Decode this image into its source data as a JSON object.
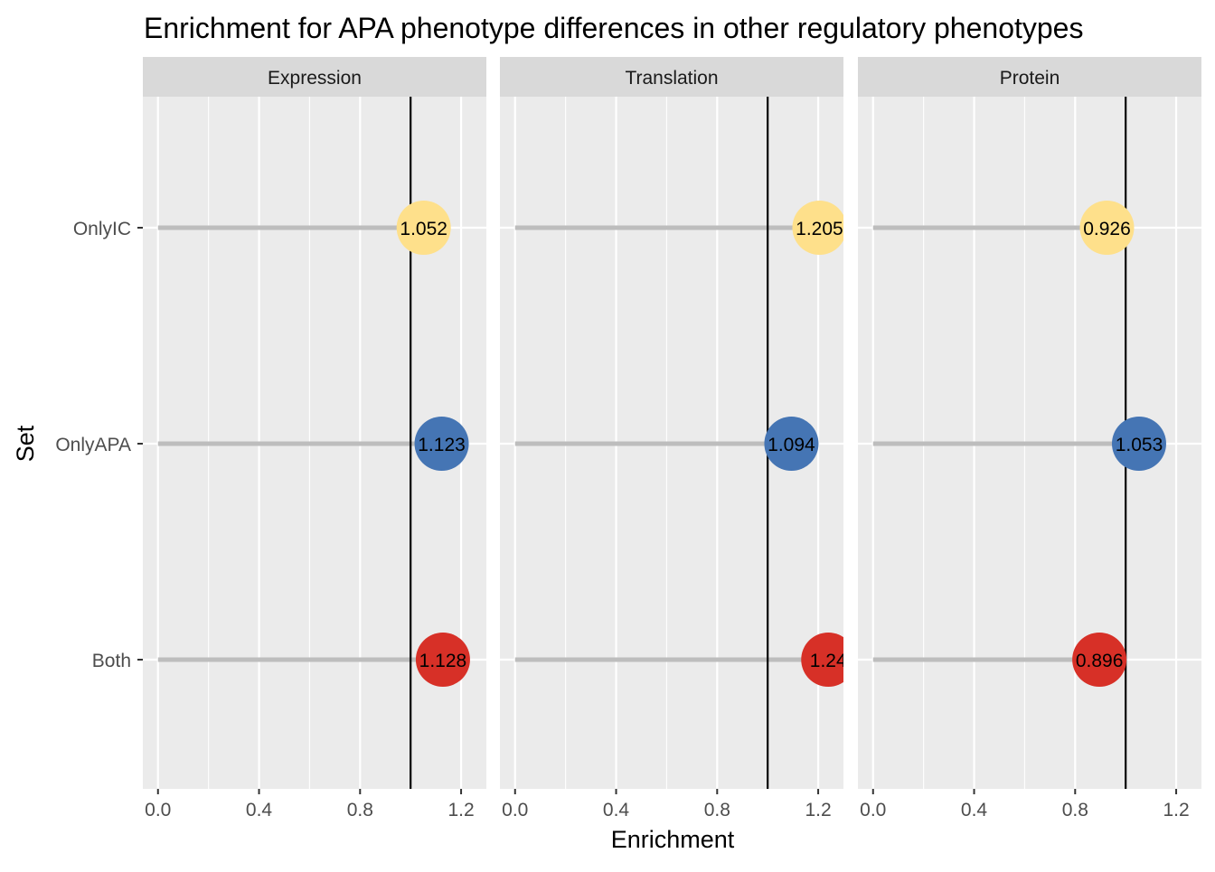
{
  "chart_data": {
    "type": "scatter",
    "subtype": "lollipop-facets",
    "title": "Enrichment for APA phenotype differences in other regulatory phenotypes",
    "xlabel": "Enrichment",
    "ylabel": "Set",
    "xlim": [
      -0.06,
      1.3
    ],
    "x_ticks": [
      0.0,
      0.4,
      0.8,
      1.2
    ],
    "x_tick_labels": [
      "0.0",
      "0.4",
      "0.8",
      "1.2"
    ],
    "reference_line": 1.0,
    "categories": [
      "OnlyIC",
      "OnlyAPA",
      "Both"
    ],
    "colors": {
      "OnlyIC": "#fee08b",
      "OnlyAPA": "#4575b4",
      "Both": "#d73027",
      "segment": "#bdbdbd",
      "panel_bg": "#ebebeb",
      "strip_bg": "#d9d9d9",
      "grid": "#ffffff"
    },
    "grid": true,
    "legend": "none",
    "facets": [
      {
        "name": "Expression",
        "points": [
          {
            "set": "OnlyIC",
            "value": 1.052,
            "label": "1.052"
          },
          {
            "set": "OnlyAPA",
            "value": 1.123,
            "label": "1.123"
          },
          {
            "set": "Both",
            "value": 1.128,
            "label": "1.128"
          }
        ]
      },
      {
        "name": "Translation",
        "points": [
          {
            "set": "OnlyIC",
            "value": 1.205,
            "label": "1.205"
          },
          {
            "set": "OnlyAPA",
            "value": 1.094,
            "label": "1.094"
          },
          {
            "set": "Both",
            "value": 1.24,
            "label": "1.24"
          }
        ]
      },
      {
        "name": "Protein",
        "points": [
          {
            "set": "OnlyIC",
            "value": 0.926,
            "label": "0.926"
          },
          {
            "set": "OnlyAPA",
            "value": 1.053,
            "label": "1.053"
          },
          {
            "set": "Both",
            "value": 0.896,
            "label": "0.896"
          }
        ]
      }
    ]
  }
}
